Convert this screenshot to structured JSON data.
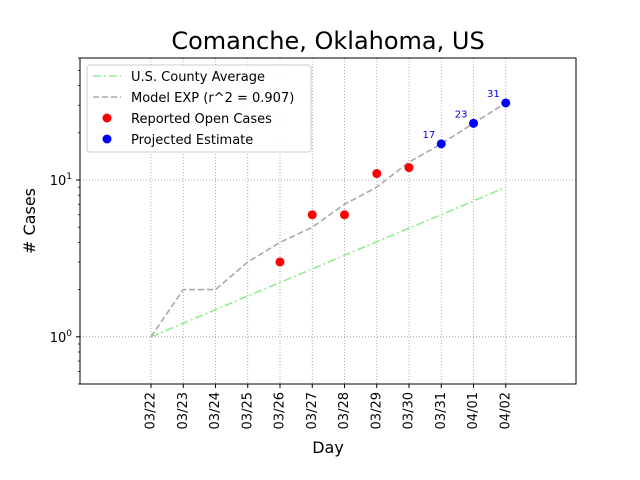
{
  "chart_data": {
    "type": "line",
    "title": "Comanche, Oklahoma, US",
    "xlabel": "Day",
    "ylabel": "# Cases",
    "yscale": "log",
    "ylim": [
      0.5,
      60
    ],
    "grid": true,
    "legend_position": "top-left",
    "categories": [
      "03/22",
      "03/23",
      "03/24",
      "03/25",
      "03/26",
      "03/27",
      "03/28",
      "03/29",
      "03/30",
      "03/31",
      "04/01",
      "04/02"
    ],
    "y_ticks": [
      {
        "value": 1,
        "base": "10",
        "exp": "0"
      },
      {
        "value": 10,
        "base": "10",
        "exp": "1"
      }
    ],
    "series": [
      {
        "name": "U.S. County Average",
        "kind": "line",
        "style": "dash-dot",
        "color": "#90ee90",
        "values": [
          1,
          1.22,
          1.49,
          1.82,
          2.22,
          2.71,
          3.31,
          4.04,
          4.93,
          6.0,
          7.35,
          9.0
        ]
      },
      {
        "name": "Model EXP (r^2 = 0.907)",
        "kind": "line",
        "style": "dashed",
        "color": "#a9a9a9",
        "values": [
          1,
          2,
          2,
          3,
          4,
          5,
          7,
          9,
          13,
          17,
          23,
          31
        ]
      },
      {
        "name": "Reported Open Cases",
        "kind": "scatter",
        "color": "#ff0000",
        "points": [
          {
            "x": "03/26",
            "y": 3
          },
          {
            "x": "03/27",
            "y": 6
          },
          {
            "x": "03/28",
            "y": 6
          },
          {
            "x": "03/29",
            "y": 11
          },
          {
            "x": "03/30",
            "y": 12
          }
        ]
      },
      {
        "name": "Projected Estimate",
        "kind": "scatter",
        "color": "#0000ff",
        "points": [
          {
            "x": "03/31",
            "y": 17,
            "label": "17"
          },
          {
            "x": "04/01",
            "y": 23,
            "label": "23"
          },
          {
            "x": "04/02",
            "y": 31,
            "label": "31"
          }
        ]
      }
    ]
  }
}
